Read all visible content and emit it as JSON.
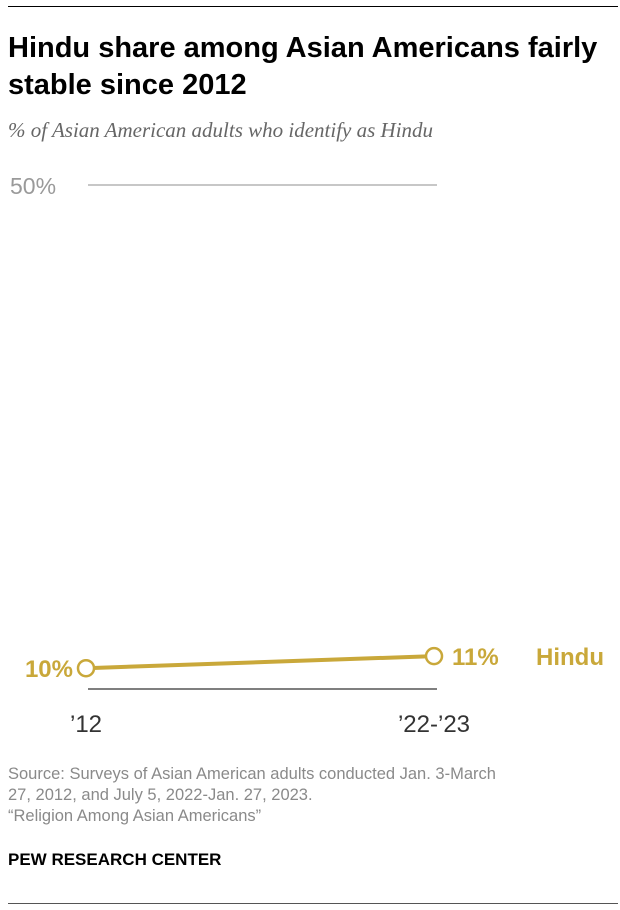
{
  "title": "Hindu share among Asian Americans fairly stable since 2012",
  "subtitle": "% of Asian American adults who identify as Hindu",
  "chart_data": {
    "type": "line",
    "x": [
      "’12",
      "’22-’23"
    ],
    "series": [
      {
        "name": "Hindu",
        "values": [
          10,
          11
        ],
        "labels": [
          "10%",
          "11%"
        ]
      }
    ],
    "y_tick_labels": [
      "50%"
    ],
    "ylim": [
      0,
      50
    ],
    "grid": true,
    "color": "#C9A83A"
  },
  "source": {
    "line1": "Source: Surveys of Asian American adults conducted Jan. 3-March",
    "line2": "27, 2012, and July 5, 2022-Jan. 27, 2023.",
    "line3": "“Religion Among Asian Americans”"
  },
  "organization": "PEW RESEARCH CENTER"
}
